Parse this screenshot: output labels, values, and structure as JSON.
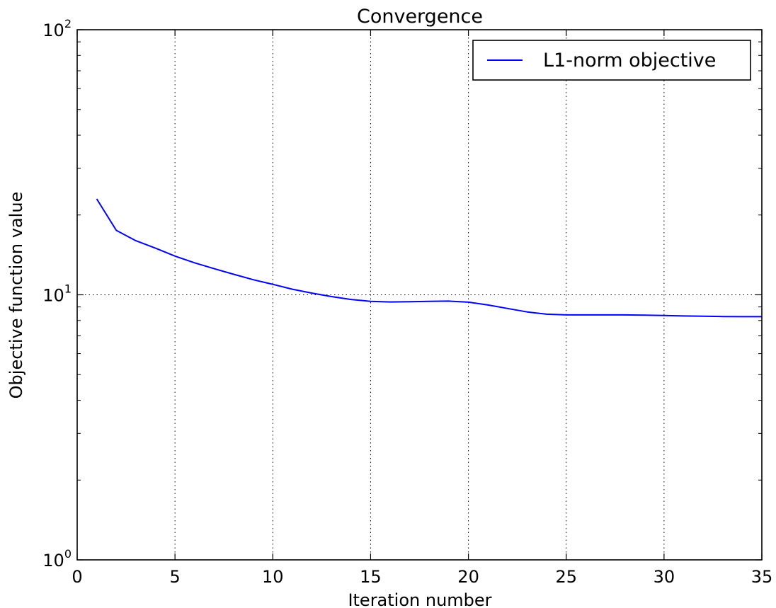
{
  "chart_data": {
    "type": "line",
    "title": "Convergence",
    "xlabel": "Iteration number",
    "ylabel": "Objective function value",
    "xlim": [
      0,
      35
    ],
    "ylim": [
      1,
      100
    ],
    "yscale": "log",
    "grid": true,
    "legend_position": "top-right",
    "x_ticks": [
      0,
      5,
      10,
      15,
      20,
      25,
      30,
      35
    ],
    "y_ticks": [
      {
        "value": 1,
        "base": "10",
        "exp": "0"
      },
      {
        "value": 10,
        "base": "10",
        "exp": "1"
      },
      {
        "value": 100,
        "base": "10",
        "exp": "2"
      }
    ],
    "series": [
      {
        "name": "L1-norm objective",
        "color": "#0000ff",
        "x": [
          1,
          2,
          3,
          4,
          5,
          6,
          7,
          8,
          9,
          10,
          11,
          12,
          13,
          14,
          15,
          16,
          17,
          18,
          19,
          20,
          21,
          22,
          23,
          24,
          25,
          26,
          27,
          28,
          29,
          30,
          31,
          32,
          33,
          34,
          35
        ],
        "y": [
          23.0,
          17.5,
          16.0,
          15.0,
          14.0,
          13.2,
          12.55,
          11.95,
          11.4,
          10.95,
          10.5,
          10.15,
          9.85,
          9.6,
          9.45,
          9.4,
          9.42,
          9.45,
          9.47,
          9.38,
          9.15,
          8.88,
          8.62,
          8.45,
          8.4,
          8.4,
          8.4,
          8.4,
          8.38,
          8.35,
          8.32,
          8.3,
          8.28,
          8.27,
          8.27
        ]
      }
    ]
  }
}
